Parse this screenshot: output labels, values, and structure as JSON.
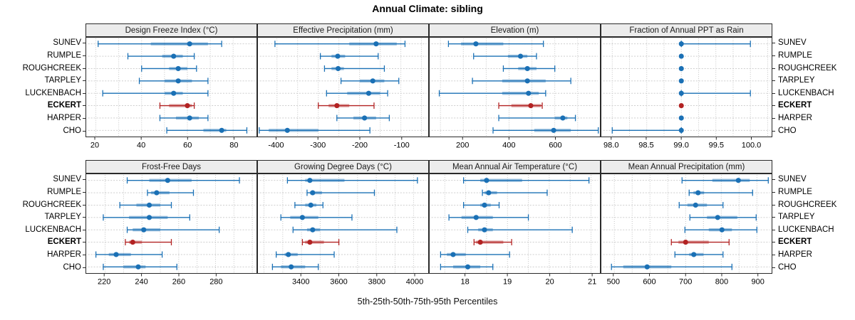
{
  "chart_data": {
    "type": "dot-whisker-trellis",
    "title": "Annual Climate: sibling",
    "caption": "5th-25th-50th-75th-95th Percentiles",
    "percentiles": [
      5,
      25,
      50,
      75,
      95
    ],
    "sites": [
      "SUNEV",
      "RUMPLE",
      "ROUGHCREEK",
      "TARPLEY",
      "LUCKENBACH",
      "ECKERT",
      "HARPER",
      "CHO"
    ],
    "highlight_site": "ECKERT",
    "colors": {
      "series": "#1a70b5",
      "highlight": "#b22222",
      "grid": "#bdbdbd",
      "rowline": "#c6c6c6",
      "border": "#2a2a2a",
      "strip_bg": "#ececec"
    },
    "legend_position": "none",
    "grid": "dotted",
    "panels": [
      {
        "title": "Design Freeze Index (°C)",
        "row": 0,
        "col": 0,
        "xlim": [
          16,
          90
        ],
        "grid_step": 10,
        "ticks": [
          20,
          40,
          60,
          80
        ],
        "tick_labels": [
          "20",
          "40",
          "60",
          "80"
        ],
        "series": [
          [
            21,
            44,
            61,
            69,
            75
          ],
          [
            34,
            49,
            54,
            58,
            63
          ],
          [
            40,
            52,
            56,
            60,
            64
          ],
          [
            39,
            50,
            56,
            62,
            69
          ],
          [
            23,
            50,
            54,
            58,
            69
          ],
          [
            48,
            52,
            60,
            62,
            63
          ],
          [
            48,
            55,
            61,
            65,
            69
          ],
          [
            51,
            67,
            75,
            77,
            86
          ]
        ]
      },
      {
        "title": "Effective Precipitation (mm)",
        "row": 0,
        "col": 1,
        "xlim": [
          -445,
          -35
        ],
        "grid_step": 50,
        "ticks": [
          -400,
          -300,
          -200,
          -100
        ],
        "tick_labels": [
          "-400",
          "-300",
          "-200",
          "-100"
        ],
        "series": [
          [
            -405,
            -225,
            -160,
            -110,
            -90
          ],
          [
            -295,
            -268,
            -253,
            -235,
            -155
          ],
          [
            -285,
            -268,
            -252,
            -238,
            -140
          ],
          [
            -245,
            -200,
            -168,
            -140,
            -105
          ],
          [
            -280,
            -230,
            -178,
            -150,
            -132
          ],
          [
            -300,
            -275,
            -255,
            -225,
            -165
          ],
          [
            -255,
            -215,
            -188,
            -160,
            -128
          ],
          [
            -443,
            -420,
            -375,
            -300,
            -175
          ]
        ]
      },
      {
        "title": "Elevation (m)",
        "row": 0,
        "col": 2,
        "xlim": [
          55,
          795
        ],
        "grid_step": 100,
        "ticks": [
          200,
          400,
          600
        ],
        "tick_labels": [
          "200",
          "400",
          "600"
        ],
        "series": [
          [
            135,
            190,
            255,
            375,
            550
          ],
          [
            245,
            395,
            450,
            480,
            520
          ],
          [
            375,
            440,
            480,
            520,
            600
          ],
          [
            240,
            370,
            480,
            560,
            670
          ],
          [
            95,
            370,
            485,
            530,
            560
          ],
          [
            355,
            410,
            495,
            540,
            545
          ],
          [
            355,
            600,
            635,
            655,
            690
          ],
          [
            330,
            510,
            595,
            670,
            790
          ]
        ]
      },
      {
        "title": "Fraction of Annual PPT as Rain",
        "row": 0,
        "col": 3,
        "xlim": [
          97.85,
          100.3
        ],
        "grid_step": 0.25,
        "ticks": [
          98.0,
          98.5,
          99.0,
          99.5,
          100.0
        ],
        "tick_labels": [
          "98.0",
          "98.5",
          "99.0",
          "99.5",
          "100.0"
        ],
        "series": [
          [
            99,
            99,
            99,
            99,
            100
          ],
          [
            99,
            99,
            99,
            99,
            99
          ],
          [
            99,
            99,
            99,
            99,
            99
          ],
          [
            99,
            99,
            99,
            99,
            99
          ],
          [
            99,
            99,
            99,
            99,
            100
          ],
          [
            99,
            99,
            99,
            99,
            99
          ],
          [
            99,
            99,
            99,
            99,
            99
          ],
          [
            98,
            99,
            99,
            99,
            99
          ]
        ]
      },
      {
        "title": "Frost-Free Days",
        "row": 1,
        "col": 0,
        "xlim": [
          210,
          302
        ],
        "grid_step": 10,
        "ticks": [
          220,
          240,
          260,
          280
        ],
        "tick_labels": [
          "220",
          "240",
          "260",
          "280"
        ],
        "series": [
          [
            232,
            244,
            254,
            267,
            293
          ],
          [
            243,
            245,
            248,
            255,
            268
          ],
          [
            228,
            237,
            244,
            250,
            256
          ],
          [
            219,
            233,
            244,
            254,
            266
          ],
          [
            232,
            235,
            241,
            250,
            282
          ],
          [
            231,
            233,
            235,
            240,
            256
          ],
          [
            215,
            222,
            226,
            234,
            251
          ],
          [
            219,
            230,
            238,
            242,
            259
          ]
        ]
      },
      {
        "title": "Growing Degree Days (°C)",
        "row": 1,
        "col": 1,
        "xlim": [
          3170,
          4075
        ],
        "grid_step": 100,
        "ticks": [
          3400,
          3600,
          3800,
          4000
        ],
        "tick_labels": [
          "3400",
          "3600",
          "3800",
          "4000"
        ],
        "series": [
          [
            3325,
            3420,
            3445,
            3630,
            4020
          ],
          [
            3430,
            3445,
            3460,
            3510,
            3790
          ],
          [
            3365,
            3420,
            3450,
            3480,
            3515
          ],
          [
            3290,
            3340,
            3405,
            3490,
            3670
          ],
          [
            3355,
            3430,
            3460,
            3500,
            3910
          ],
          [
            3405,
            3420,
            3445,
            3520,
            3600
          ],
          [
            3265,
            3310,
            3330,
            3380,
            3575
          ],
          [
            3245,
            3290,
            3345,
            3420,
            3490
          ]
        ]
      },
      {
        "title": "Mean Annual Air Temperature (°C)",
        "row": 1,
        "col": 2,
        "xlim": [
          17.15,
          21.2
        ],
        "grid_step": 0.5,
        "ticks": [
          18,
          19,
          20,
          21
        ],
        "tick_labels": [
          "18",
          "19",
          "20",
          "21"
        ],
        "series": [
          [
            17.95,
            18.35,
            18.5,
            19.35,
            20.95
          ],
          [
            18.4,
            18.45,
            18.55,
            18.75,
            19.95
          ],
          [
            17.95,
            18.35,
            18.45,
            18.6,
            18.8
          ],
          [
            17.6,
            17.9,
            18.25,
            18.65,
            19.5
          ],
          [
            18.05,
            18.3,
            18.45,
            18.65,
            20.55
          ],
          [
            18.2,
            18.25,
            18.35,
            18.9,
            19.1
          ],
          [
            17.4,
            17.55,
            17.7,
            18.0,
            19.05
          ],
          [
            17.4,
            17.7,
            18.05,
            18.35,
            18.65
          ]
        ]
      },
      {
        "title": "Mean Annual Precipitation (mm)",
        "row": 1,
        "col": 3,
        "xlim": [
          465,
          940
        ],
        "grid_step": 50,
        "ticks": [
          500,
          600,
          700,
          800,
          900
        ],
        "tick_labels": [
          "500",
          "600",
          "700",
          "800",
          "900"
        ],
        "series": [
          [
            690,
            775,
            848,
            880,
            932
          ],
          [
            710,
            722,
            735,
            752,
            888
          ],
          [
            682,
            705,
            728,
            760,
            805
          ],
          [
            712,
            760,
            790,
            845,
            898
          ],
          [
            698,
            765,
            802,
            830,
            900
          ],
          [
            660,
            680,
            700,
            765,
            822
          ],
          [
            670,
            710,
            723,
            750,
            805
          ],
          [
            492,
            525,
            592,
            660,
            830
          ]
        ]
      }
    ]
  }
}
